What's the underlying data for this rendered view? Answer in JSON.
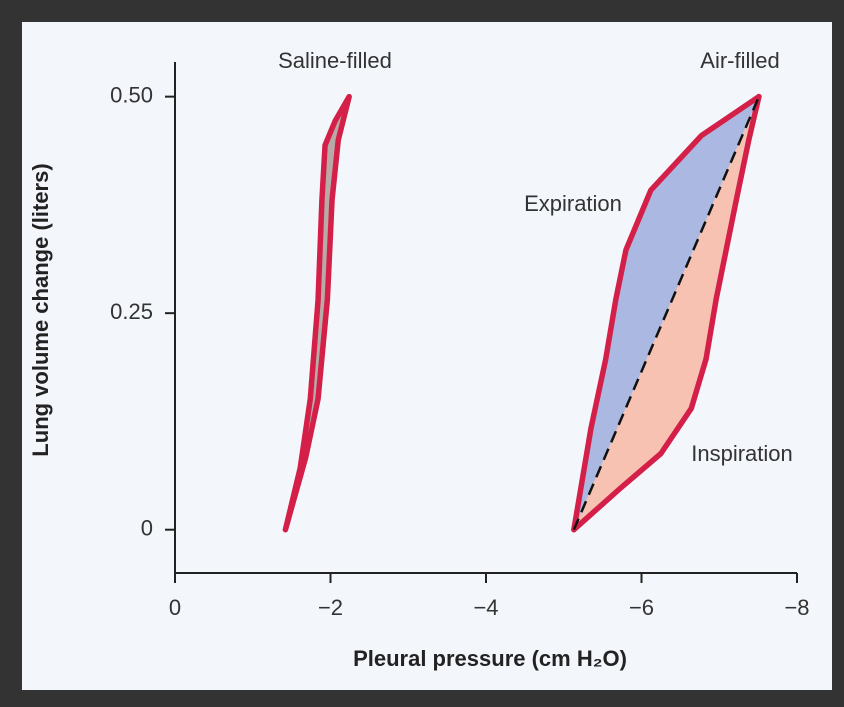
{
  "chart_data": {
    "type": "line",
    "xlabel": "Pleural pressure (cm H₂O)",
    "ylabel": "Lung volume change (liters)",
    "xlim": [
      0,
      -8
    ],
    "ylim": [
      -0.05,
      0.54
    ],
    "xticks": [
      0,
      {
        "value": -2,
        "label": "−2"
      },
      {
        "value": -4,
        "label": "−4"
      },
      {
        "value": -6,
        "label": "−6"
      },
      {
        "value": -8,
        "label": "−8"
      }
    ],
    "yticks": [
      0,
      0.25,
      {
        "value": 0.5,
        "label": "0.50"
      }
    ],
    "line_color": "#d42049",
    "series": [
      {
        "name": "Saline-filled",
        "fill": "#b8aaa6",
        "x": [
          -1.42,
          -1.61,
          -1.74,
          -1.84,
          -1.89,
          -1.93,
          -2.06,
          -2.24,
          -2.1,
          -2.02,
          -1.96,
          -1.84,
          -1.68,
          -1.42
        ],
        "values": [
          0,
          0.071,
          0.151,
          0.265,
          0.381,
          0.444,
          0.472,
          0.5,
          0.45,
          0.381,
          0.266,
          0.151,
          0.083,
          0
        ]
      },
      {
        "name": "Expiration",
        "fill": "#abb9e2",
        "x": [
          -7.51,
          -6.77,
          -6.12,
          -5.8,
          -5.67,
          -5.54,
          -5.35,
          -5.13
        ],
        "values": [
          0.5,
          0.455,
          0.392,
          0.323,
          0.266,
          0.197,
          0.117,
          0
        ]
      },
      {
        "name": "Inspiration",
        "fill": "#f7c2b2",
        "x": [
          -5.13,
          -5.73,
          -6.25,
          -6.64,
          -6.83,
          -6.96,
          -7.22,
          -7.38,
          -7.51
        ],
        "values": [
          0,
          0.048,
          0.088,
          0.14,
          0.197,
          0.266,
          0.381,
          0.45,
          0.5
        ]
      },
      {
        "dashed": true,
        "color": "#111111",
        "x": [
          -5.13,
          -7.51
        ],
        "values": [
          0,
          0.5
        ]
      }
    ],
    "annotations": [
      "Air-filled"
    ]
  }
}
